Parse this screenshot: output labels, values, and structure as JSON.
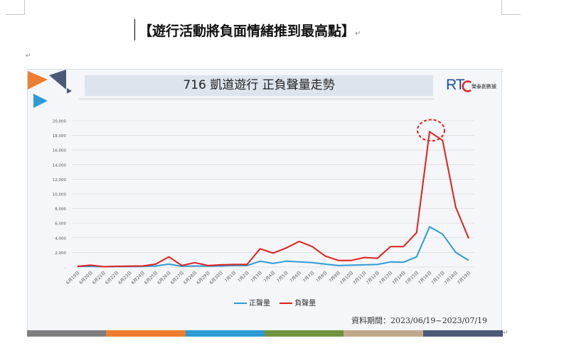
{
  "document": {
    "heading": "【遊行活動將負面情緒推到最高點】",
    "paragraph_mark": "↵"
  },
  "slide": {
    "title": "716 凱道遊行 正負聲量走勢",
    "logo": {
      "rt": "RT",
      "sub": "榮泰創數據"
    },
    "period": "資料期間：2023/06/19~2023/07/19",
    "stripe_colors": [
      "#7f7f7f",
      "#ed7d31",
      "#2e9bd6",
      "#70943f",
      "#c0a98a",
      "#4c5a78"
    ]
  },
  "chart_data": {
    "type": "line",
    "title": "716 凱道遊行 正負聲量走勢",
    "categories": [
      "6月19日",
      "6月20日",
      "6月21日",
      "6月22日",
      "6月23日",
      "6月24日",
      "6月25日",
      "6月26日",
      "6月27日",
      "6月28日",
      "6月29日",
      "6月30日",
      "7月1日",
      "7月2日",
      "7月3日",
      "7月4日",
      "7月5日",
      "7月6日",
      "7月7日",
      "7月8日",
      "7月9日",
      "7月10日",
      "7月11日",
      "7月12日",
      "7月13日",
      "7月14日",
      "7月15日",
      "7月16日",
      "7月17日",
      "7月18日",
      "7月19日"
    ],
    "y_ticks": [
      "-",
      "2,000",
      "4,000",
      "6,000",
      "8,000",
      "10,000",
      "12,000",
      "14,000",
      "16,000",
      "18,000",
      "20,000"
    ],
    "ylim": [
      0,
      20000
    ],
    "grid": true,
    "legend": "bottom",
    "series": [
      {
        "name": "正聲量",
        "color": "#2e9bd6",
        "values": [
          80,
          100,
          50,
          80,
          80,
          90,
          150,
          400,
          100,
          150,
          120,
          150,
          200,
          200,
          800,
          500,
          800,
          700,
          600,
          400,
          200,
          250,
          300,
          350,
          700,
          650,
          1400,
          5500,
          4500,
          2000,
          900
        ]
      },
      {
        "name": "負聲量",
        "color": "#e0201b",
        "values": [
          100,
          250,
          50,
          100,
          120,
          150,
          400,
          1400,
          200,
          600,
          200,
          300,
          350,
          350,
          2500,
          1900,
          2600,
          3500,
          2800,
          1500,
          900,
          900,
          1300,
          1200,
          2800,
          2800,
          4700,
          18500,
          17300,
          8200,
          3900
        ]
      }
    ],
    "annotation": {
      "type": "dashed-circle",
      "color": "#e0201b",
      "category": "7月16日",
      "series": "負聲量"
    }
  }
}
